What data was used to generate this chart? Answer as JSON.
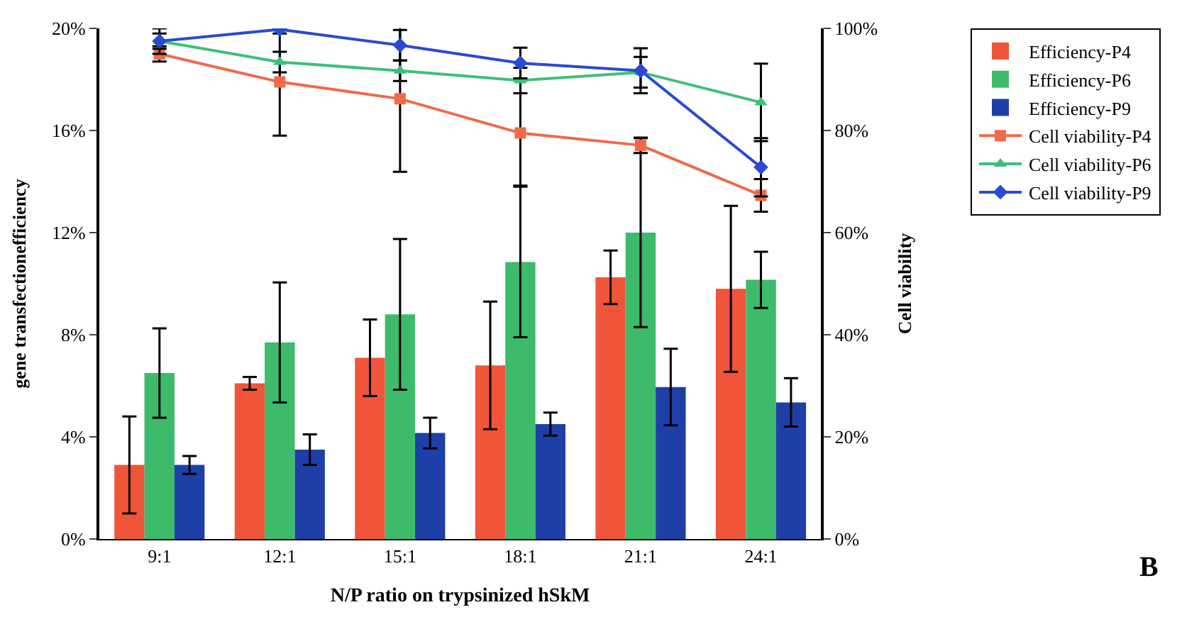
{
  "chart_data": {
    "type": "bar",
    "xlabel": "N/P ratio on trypsinized hSkM",
    "ylabel": "gene transfectionefficiency",
    "y2label": "Cell viability",
    "categories": [
      "9:1",
      "12:1",
      "15:1",
      "18:1",
      "21:1",
      "24:1"
    ],
    "series": [
      {
        "name": "Efficiency-P4",
        "color": "#f0553a",
        "values": [
          2.9,
          6.1,
          7.1,
          6.8,
          10.25,
          9.8
        ],
        "errors": [
          1.9,
          0.25,
          1.5,
          2.5,
          1.05,
          3.25
        ]
      },
      {
        "name": "Efficiency-P6",
        "color": "#3dbb6a",
        "values": [
          6.5,
          7.7,
          8.8,
          10.85,
          12.0,
          10.15
        ],
        "errors": [
          1.75,
          2.35,
          2.95,
          2.95,
          3.7,
          1.1
        ]
      },
      {
        "name": "Efficiency-P9",
        "color": "#1f3fa8",
        "values": [
          2.9,
          3.5,
          4.15,
          4.5,
          5.95,
          5.35
        ],
        "errors": [
          0.35,
          0.6,
          0.6,
          0.45,
          1.5,
          0.95
        ]
      },
      {
        "name": "Cell viability-P4",
        "type": "line",
        "axis": "y2",
        "marker": "square",
        "color": "#f06a4a",
        "values": [
          95,
          89.5,
          86.2,
          79.5,
          77.1,
          67.3
        ],
        "errors": [
          1.5,
          10.5,
          14.3,
          10.3,
          1.5,
          3.2
        ]
      },
      {
        "name": "Cell viability-P6",
        "type": "line",
        "axis": "y2",
        "marker": "triangle",
        "color": "#3dc07a",
        "values": [
          97.5,
          93.4,
          91.7,
          89.8,
          91.4,
          85.5
        ],
        "errors": [
          1.5,
          2,
          2,
          2.5,
          3,
          7.6
        ]
      },
      {
        "name": "Cell viability-P9",
        "type": "line",
        "axis": "y2",
        "marker": "diamond",
        "color": "#2a4bd0",
        "values": [
          97.5,
          99.8,
          96.7,
          93.2,
          91.7,
          72.8
        ],
        "errors": [
          2.5,
          0.8,
          3,
          3,
          4.4,
          5.7
        ]
      }
    ],
    "ylim": [
      0,
      20
    ],
    "yticks": [
      {
        "value": 0,
        "label": "0%"
      },
      {
        "value": 4,
        "label": "4%"
      },
      {
        "value": 8,
        "label": "8%"
      },
      {
        "value": 12,
        "label": "12%"
      },
      {
        "value": 16,
        "label": "16%"
      },
      {
        "value": 20,
        "label": "20%"
      }
    ],
    "y2lim": [
      0,
      100
    ],
    "y2ticks": [
      {
        "value": 0,
        "label": "0%"
      },
      {
        "value": 20,
        "label": "20%"
      },
      {
        "value": 40,
        "label": "40%"
      },
      {
        "value": 60,
        "label": "60%"
      },
      {
        "value": 80,
        "label": "80%"
      },
      {
        "value": 100,
        "label": "100%"
      }
    ],
    "legend": "top right",
    "annotations": [
      "B"
    ]
  }
}
